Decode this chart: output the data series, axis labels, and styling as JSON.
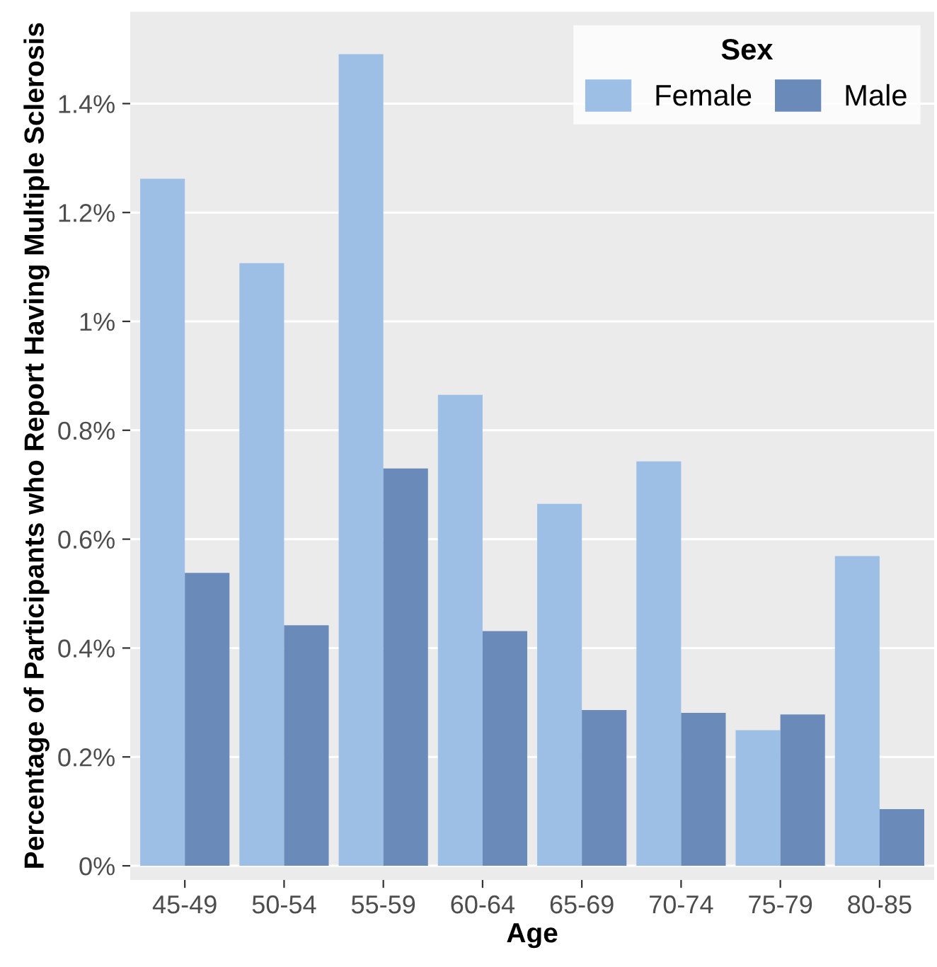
{
  "chart_data": {
    "type": "bar",
    "xlabel": "Age",
    "ylabel": "Percentage of Participants who Report Having Multiple Sclerosis",
    "legend_title": "Sex",
    "categories": [
      "45-49",
      "50-54",
      "55-59",
      "60-64",
      "65-69",
      "70-74",
      "75-79",
      "80-85"
    ],
    "series": [
      {
        "name": "Female",
        "color": "#9dbfe6",
        "values": [
          1.262,
          1.107,
          1.491,
          0.865,
          0.665,
          0.743,
          0.249,
          0.569
        ]
      },
      {
        "name": "Male",
        "color": "#6a8bba",
        "values": [
          0.538,
          0.442,
          0.73,
          0.431,
          0.286,
          0.281,
          0.278,
          0.104
        ]
      }
    ],
    "ylim": [
      -0.026,
      1.569
    ],
    "yticks": [
      {
        "value": 0,
        "label": "0%"
      },
      {
        "value": 0.2,
        "label": "0.2%"
      },
      {
        "value": 0.4,
        "label": "0.4%"
      },
      {
        "value": 0.6,
        "label": "0.6%"
      },
      {
        "value": 0.8,
        "label": "0.8%"
      },
      {
        "value": 1,
        "label": "1%"
      },
      {
        "value": 1.2,
        "label": "1.2%"
      },
      {
        "value": 1.4,
        "label": "1.4%"
      }
    ],
    "grid": "y",
    "legend": "top right"
  }
}
